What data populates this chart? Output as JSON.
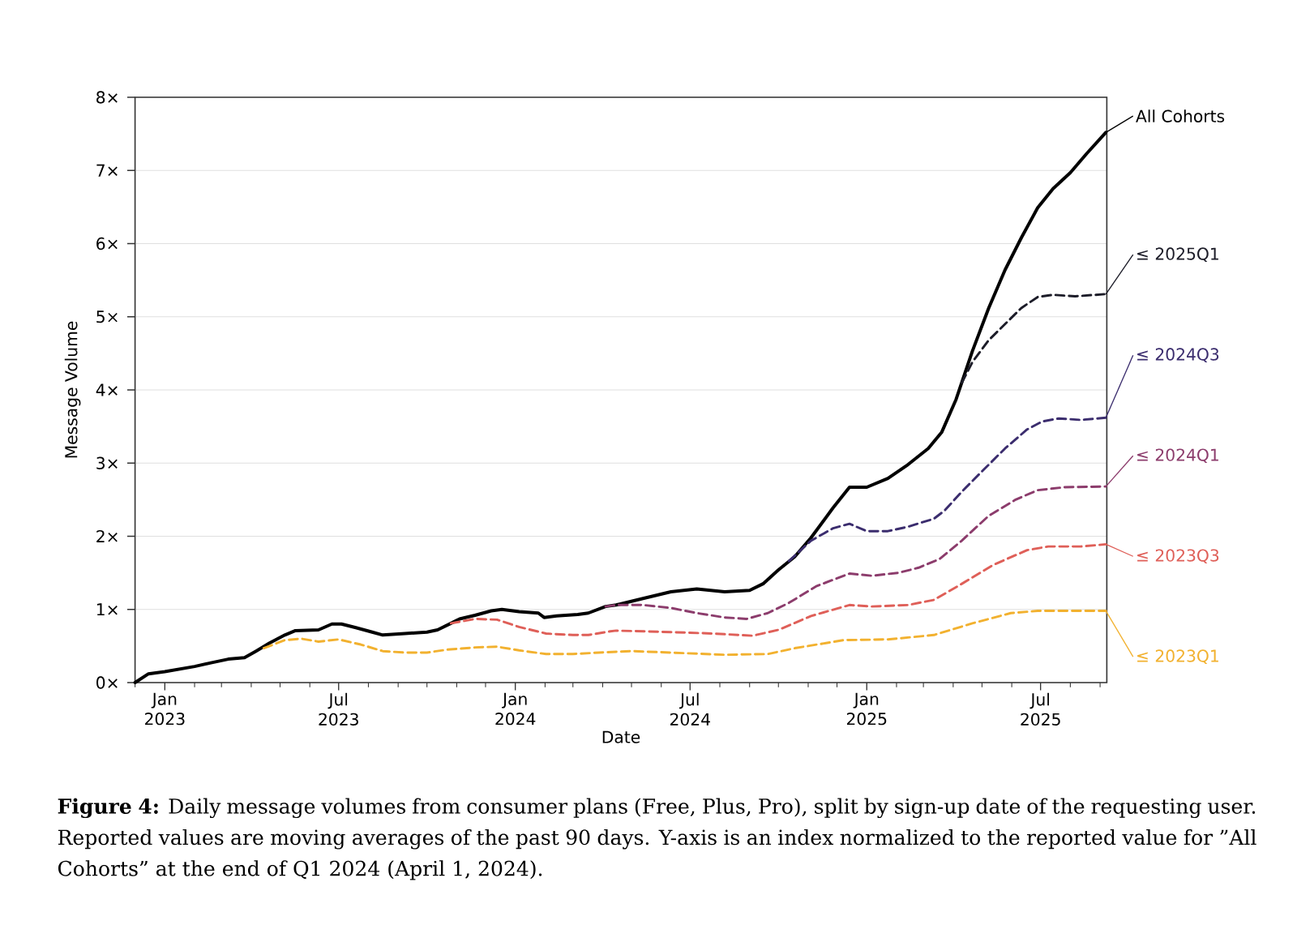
{
  "chart_data": {
    "type": "line",
    "xlabel": "Date",
    "ylabel": "Message Volume",
    "annotations": [
      "**Figure 4:** Daily message volumes from consumer plans (Free, Plus, Pro), split by sign-up date of the requesting user. Reported values are moving averages of the past 90 days. Y-axis is an index normalized to the reported value for ”All Cohorts” at the end of Q1 2024 (April 1, 2024)."
    ],
    "xlim": [
      "2022-12-01",
      "2025-09-08"
    ],
    "ylim": [
      0,
      8
    ],
    "xticks": [
      {
        "value": "2022-12-01",
        "label": null
      },
      {
        "value": "2023-01-01",
        "label": "Jan 2023"
      },
      {
        "value": "2023-02-01",
        "label": null
      },
      {
        "value": "2023-03-01",
        "label": null
      },
      {
        "value": "2023-04-01",
        "label": null
      },
      {
        "value": "2023-05-01",
        "label": null
      },
      {
        "value": "2023-06-01",
        "label": null
      },
      {
        "value": "2023-07-01",
        "label": "Jul 2023"
      },
      {
        "value": "2023-08-01",
        "label": null
      },
      {
        "value": "2023-09-01",
        "label": null
      },
      {
        "value": "2023-10-01",
        "label": null
      },
      {
        "value": "2023-11-01",
        "label": null
      },
      {
        "value": "2023-12-01",
        "label": null
      },
      {
        "value": "2024-01-01",
        "label": "Jan 2024"
      },
      {
        "value": "2024-02-01",
        "label": null
      },
      {
        "value": "2024-03-01",
        "label": null
      },
      {
        "value": "2024-04-01",
        "label": null
      },
      {
        "value": "2024-05-01",
        "label": null
      },
      {
        "value": "2024-06-01",
        "label": null
      },
      {
        "value": "2024-07-01",
        "label": "Jul 2024"
      },
      {
        "value": "2024-08-01",
        "label": null
      },
      {
        "value": "2024-09-01",
        "label": null
      },
      {
        "value": "2024-10-01",
        "label": null
      },
      {
        "value": "2024-11-01",
        "label": null
      },
      {
        "value": "2024-12-01",
        "label": null
      },
      {
        "value": "2025-01-01",
        "label": "Jan 2025"
      },
      {
        "value": "2025-02-01",
        "label": null
      },
      {
        "value": "2025-03-01",
        "label": null
      },
      {
        "value": "2025-04-01",
        "label": null
      },
      {
        "value": "2025-05-01",
        "label": null
      },
      {
        "value": "2025-06-01",
        "label": null
      },
      {
        "value": "2025-07-01",
        "label": "Jul 2025"
      },
      {
        "value": "2025-08-01",
        "label": null
      },
      {
        "value": "2025-09-01",
        "label": null
      }
    ],
    "yticks": [
      {
        "value": 0,
        "label": "0×"
      },
      {
        "value": 1,
        "label": "1×"
      },
      {
        "value": 2,
        "label": "2×"
      },
      {
        "value": 3,
        "label": "3×"
      },
      {
        "value": 4,
        "label": "4×"
      },
      {
        "value": 5,
        "label": "5×"
      },
      {
        "value": 6,
        "label": "6×"
      },
      {
        "value": 7,
        "label": "7×"
      },
      {
        "value": 8,
        "label": "8×"
      }
    ],
    "grid": "y",
    "legend": "right",
    "series": [
      {
        "name": "All Cohorts",
        "color": "#000000",
        "line_style": "solid",
        "x": [
          "2022-12-01",
          "2022-12-15",
          "2023-01-01",
          "2023-02-01",
          "2023-02-18",
          "2023-03-08",
          "2023-03-25",
          "2023-04-06",
          "2023-04-20",
          "2023-05-06",
          "2023-05-17",
          "2023-06-10",
          "2023-06-24",
          "2023-07-04",
          "2023-07-19",
          "2023-08-05",
          "2023-08-16",
          "2023-09-08",
          "2023-10-01",
          "2023-10-12",
          "2023-10-26",
          "2023-11-04",
          "2023-11-20",
          "2023-12-07",
          "2023-12-18",
          "2024-01-05",
          "2024-01-25",
          "2024-01-31",
          "2024-02-13",
          "2024-03-06",
          "2024-03-17",
          "2024-04-04",
          "2024-04-15",
          "2024-05-13",
          "2024-06-11",
          "2024-07-08",
          "2024-08-06",
          "2024-09-01",
          "2024-09-15",
          "2024-10-01",
          "2024-10-18",
          "2024-11-04",
          "2024-11-27",
          "2024-12-14",
          "2025-01-01",
          "2025-01-23",
          "2025-02-13",
          "2025-03-06",
          "2025-03-20",
          "2025-04-04",
          "2025-04-21",
          "2025-05-08",
          "2025-05-25",
          "2025-06-11",
          "2025-06-28",
          "2025-07-14",
          "2025-08-01",
          "2025-08-18",
          "2025-09-07"
        ],
        "values": [
          0,
          0.12,
          0.15,
          0.22,
          0.27,
          0.32,
          0.34,
          0.43,
          0.54,
          0.65,
          0.71,
          0.72,
          0.8,
          0.8,
          0.75,
          0.69,
          0.65,
          0.67,
          0.69,
          0.72,
          0.81,
          0.87,
          0.92,
          0.98,
          1.0,
          0.97,
          0.95,
          0.89,
          0.91,
          0.93,
          0.95,
          1.04,
          1.06,
          1.15,
          1.24,
          1.28,
          1.24,
          1.26,
          1.35,
          1.54,
          1.72,
          1.98,
          2.39,
          2.67,
          2.67,
          2.79,
          2.98,
          3.2,
          3.42,
          3.87,
          4.53,
          5.12,
          5.64,
          6.08,
          6.49,
          6.75,
          6.97,
          7.23,
          7.52
        ]
      },
      {
        "name": "≤ 2025Q1",
        "color": "#1c1c28",
        "line_style": "dashed",
        "x": [
          "2025-04-10",
          "2025-04-21",
          "2025-05-08",
          "2025-05-25",
          "2025-06-11",
          "2025-06-28",
          "2025-07-14",
          "2025-08-06",
          "2025-09-07"
        ],
        "values": [
          4.1,
          4.38,
          4.68,
          4.9,
          5.12,
          5.27,
          5.3,
          5.28,
          5.31
        ]
      },
      {
        "name": "≤ 2024Q3",
        "color": "#3b2d6e",
        "line_style": "dashed",
        "x": [
          "2024-10-12",
          "2024-11-04",
          "2024-11-27",
          "2024-12-14",
          "2025-01-01",
          "2025-01-23",
          "2025-02-13",
          "2025-03-12",
          "2025-03-23",
          "2025-04-10",
          "2025-05-02",
          "2025-05-25",
          "2025-06-17",
          "2025-07-03",
          "2025-07-20",
          "2025-08-12",
          "2025-09-07"
        ],
        "values": [
          1.66,
          1.94,
          2.11,
          2.17,
          2.07,
          2.07,
          2.13,
          2.24,
          2.35,
          2.61,
          2.9,
          3.2,
          3.46,
          3.57,
          3.61,
          3.59,
          3.62
        ]
      },
      {
        "name": "≤ 2024Q1",
        "color": "#8c3c6c",
        "line_style": "dashed",
        "x": [
          "2024-04-04",
          "2024-04-15",
          "2024-05-13",
          "2024-06-11",
          "2024-07-08",
          "2024-08-06",
          "2024-08-29",
          "2024-09-20",
          "2024-10-12",
          "2024-11-10",
          "2024-12-14",
          "2025-01-06",
          "2025-02-03",
          "2025-02-24",
          "2025-03-18",
          "2025-04-10",
          "2025-05-08",
          "2025-06-05",
          "2025-06-28",
          "2025-07-26",
          "2025-09-07"
        ],
        "values": [
          1.04,
          1.06,
          1.06,
          1.02,
          0.95,
          0.89,
          0.87,
          0.95,
          1.09,
          1.32,
          1.49,
          1.46,
          1.5,
          1.57,
          1.69,
          1.94,
          2.28,
          2.5,
          2.63,
          2.67,
          2.68
        ]
      },
      {
        "name": "≤ 2023Q3",
        "color": "#df5f58",
        "line_style": "dashed",
        "x": [
          "2023-10-26",
          "2023-11-20",
          "2023-12-13",
          "2024-01-05",
          "2024-02-02",
          "2024-03-01",
          "2024-03-17",
          "2024-04-09",
          "2024-04-15",
          "2024-06-11",
          "2024-07-25",
          "2024-09-04",
          "2024-10-01",
          "2024-11-04",
          "2024-12-14",
          "2025-01-06",
          "2025-02-13",
          "2025-03-12",
          "2025-04-10",
          "2025-05-13",
          "2025-06-17",
          "2025-07-09",
          "2025-08-12",
          "2025-09-07"
        ],
        "values": [
          0.81,
          0.87,
          0.86,
          0.76,
          0.67,
          0.65,
          0.65,
          0.7,
          0.71,
          0.69,
          0.67,
          0.64,
          0.72,
          0.91,
          1.06,
          1.04,
          1.06,
          1.13,
          1.35,
          1.61,
          1.81,
          1.86,
          1.86,
          1.89
        ]
      },
      {
        "name": "≤ 2023Q1",
        "color": "#f2b12f",
        "line_style": "dashed",
        "x": [
          "2023-04-14",
          "2023-05-06",
          "2023-05-23",
          "2023-06-10",
          "2023-07-01",
          "2023-07-24",
          "2023-08-16",
          "2023-09-08",
          "2023-10-01",
          "2023-10-22",
          "2023-11-20",
          "2023-12-13",
          "2024-01-05",
          "2024-02-02",
          "2024-03-01",
          "2024-03-28",
          "2024-05-01",
          "2024-06-11",
          "2024-08-06",
          "2024-09-20",
          "2024-10-18",
          "2024-12-08",
          "2025-01-23",
          "2025-03-12",
          "2025-04-21",
          "2025-05-31",
          "2025-06-28",
          "2025-08-12",
          "2025-09-07"
        ],
        "values": [
          0.47,
          0.58,
          0.6,
          0.56,
          0.59,
          0.52,
          0.43,
          0.41,
          0.41,
          0.45,
          0.48,
          0.49,
          0.44,
          0.39,
          0.39,
          0.41,
          0.43,
          0.41,
          0.38,
          0.39,
          0.47,
          0.58,
          0.59,
          0.65,
          0.81,
          0.95,
          0.98,
          0.98,
          0.98
        ]
      }
    ]
  }
}
